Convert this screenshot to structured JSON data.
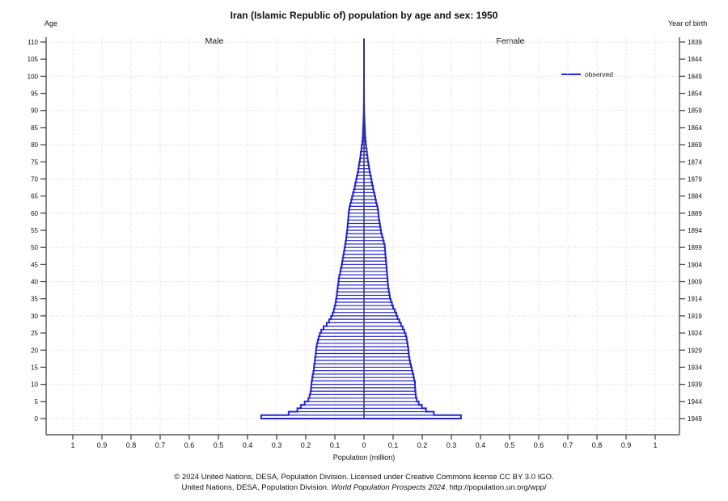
{
  "title": "Iran (Islamic Republic of) population by age and sex: 1950",
  "left_axis": {
    "label": "Age",
    "tick_ages": [
      110,
      105,
      100,
      95,
      90,
      85,
      80,
      75,
      70,
      65,
      60,
      55,
      50,
      45,
      40,
      35,
      30,
      25,
      20,
      15,
      10,
      5,
      0
    ]
  },
  "right_axis": {
    "label": "Year of birth",
    "tick_years": [
      1839,
      1844,
      1849,
      1854,
      1859,
      1864,
      1869,
      1874,
      1879,
      1884,
      1889,
      1894,
      1899,
      1904,
      1909,
      1914,
      1919,
      1924,
      1929,
      1934,
      1939,
      1944,
      1949
    ]
  },
  "x_axis": {
    "label": "Population (million)",
    "tick_values": [
      -1,
      -0.9,
      -0.8,
      -0.7,
      -0.6,
      -0.5,
      -0.4,
      -0.3,
      -0.2,
      -0.1,
      0,
      0.1,
      0.2,
      0.3,
      0.4,
      0.5,
      0.6,
      0.7,
      0.8,
      0.9,
      1
    ],
    "tick_labels": [
      "1",
      "0.9",
      "0.8",
      "0.7",
      "0.6",
      "0.5",
      "0.4",
      "0.3",
      "0.2",
      "0.1",
      "0",
      "0.1",
      "0.2",
      "0.3",
      "0.4",
      "0.5",
      "0.6",
      "0.7",
      "0.8",
      "0.9",
      "1"
    ]
  },
  "annotations": {
    "male": "Male",
    "female": "Female"
  },
  "legend": {
    "observed": "observed"
  },
  "footer": {
    "line1": "© 2024 United Nations, DESA, Population Division. Licensed under Creative Commons license CC BY 3.0 IGO.",
    "line2_prefix": "United Nations, DESA, Population Division. ",
    "line2_italic": "World Population Prospects 2024",
    "line2_suffix": ". http://population.un.org/wpp/"
  },
  "colors": {
    "series_blue": "#2424d0",
    "center_line": "#38386b",
    "axis": "#3a3a3a",
    "gridline": "#d4d4d4"
  },
  "chart_data": {
    "type": "line",
    "subtype": "population-pyramid-outline",
    "title": "Iran (Islamic Republic of) population by age and sex: 1950",
    "xlabel": "Population (million)",
    "ylabel_left": "Age",
    "ylabel_right": "Year of birth",
    "legend_entries": [
      "observed"
    ],
    "legend_position": "right",
    "grid": true,
    "unit": "million persons",
    "age_range": [
      0,
      110
    ],
    "xlim_millions": [
      -1,
      1
    ],
    "series": [
      {
        "name": "male",
        "side": "left",
        "values_by_age": [
          0.353,
          0.259,
          0.229,
          0.217,
          0.204,
          0.191,
          0.187,
          0.184,
          0.182,
          0.181,
          0.18,
          0.178,
          0.176,
          0.174,
          0.172,
          0.171,
          0.169,
          0.168,
          0.166,
          0.165,
          0.164,
          0.162,
          0.159,
          0.156,
          0.152,
          0.147,
          0.139,
          0.128,
          0.12,
          0.113,
          0.108,
          0.104,
          0.101,
          0.098,
          0.096,
          0.094,
          0.093,
          0.091,
          0.09,
          0.088,
          0.087,
          0.085,
          0.082,
          0.08,
          0.077,
          0.075,
          0.073,
          0.071,
          0.069,
          0.067,
          0.065,
          0.063,
          0.061,
          0.06,
          0.058,
          0.057,
          0.056,
          0.055,
          0.054,
          0.053,
          0.052,
          0.05,
          0.047,
          0.044,
          0.041,
          0.038,
          0.035,
          0.032,
          0.03,
          0.027,
          0.025,
          0.022,
          0.02,
          0.018,
          0.016,
          0.014,
          0.012,
          0.011,
          0.009,
          0.008,
          0.006,
          0.005,
          0.004,
          0.0035,
          0.003,
          0.0025,
          0.002,
          0.0016,
          0.0012,
          0.0009,
          0.0007,
          0.0005,
          0.0004,
          0.0003,
          0.0002,
          0.00015,
          0.0001,
          8e-05,
          5e-05,
          4e-05,
          3e-05,
          2e-05,
          2e-05,
          1e-05,
          1e-05,
          1e-05,
          0,
          0,
          0,
          0,
          0
        ]
      },
      {
        "name": "female",
        "side": "right",
        "values_by_age": [
          0.333,
          0.24,
          0.213,
          0.199,
          0.188,
          0.181,
          0.178,
          0.177,
          0.176,
          0.175,
          0.175,
          0.172,
          0.17,
          0.167,
          0.164,
          0.161,
          0.158,
          0.156,
          0.154,
          0.153,
          0.152,
          0.15,
          0.148,
          0.146,
          0.143,
          0.139,
          0.133,
          0.127,
          0.121,
          0.115,
          0.111,
          0.106,
          0.1,
          0.096,
          0.092,
          0.089,
          0.087,
          0.085,
          0.083,
          0.082,
          0.081,
          0.08,
          0.079,
          0.078,
          0.077,
          0.076,
          0.075,
          0.074,
          0.073,
          0.072,
          0.071,
          0.068,
          0.065,
          0.062,
          0.059,
          0.057,
          0.055,
          0.053,
          0.051,
          0.05,
          0.049,
          0.047,
          0.044,
          0.041,
          0.039,
          0.036,
          0.033,
          0.031,
          0.028,
          0.026,
          0.024,
          0.021,
          0.019,
          0.017,
          0.015,
          0.013,
          0.012,
          0.01,
          0.009,
          0.007,
          0.006,
          0.005,
          0.004,
          0.0035,
          0.003,
          0.0025,
          0.002,
          0.0016,
          0.0012,
          0.0009,
          0.0007,
          0.0005,
          0.0004,
          0.0003,
          0.0002,
          0.00015,
          0.0001,
          8e-05,
          6e-05,
          4e-05,
          3e-05,
          2e-05,
          2e-05,
          1e-05,
          1e-05,
          1e-05,
          0,
          0,
          0,
          0,
          0
        ]
      }
    ]
  }
}
